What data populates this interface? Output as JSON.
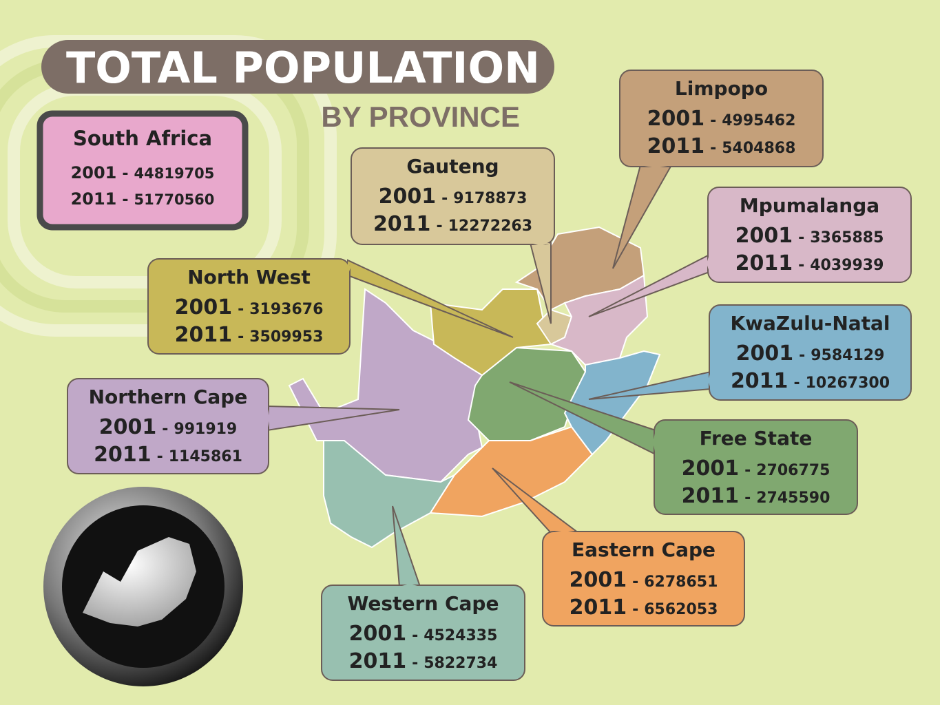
{
  "header": {
    "title": "TOTAL POPULATION",
    "subtitle": "BY PROVINCE"
  },
  "years": [
    "2001",
    "2011"
  ],
  "separator": "-",
  "national": {
    "name": "South Africa",
    "pop_2001": 44819705,
    "pop_2011": 51770560
  },
  "provinces": [
    {
      "name": "Limpopo",
      "pop_2001": 4995462,
      "pop_2011": 5404868
    },
    {
      "name": "Gauteng",
      "pop_2001": 9178873,
      "pop_2011": 12272263
    },
    {
      "name": "Mpumalanga",
      "pop_2001": 3365885,
      "pop_2011": 4039939
    },
    {
      "name": "North West",
      "pop_2001": 3193676,
      "pop_2011": 3509953
    },
    {
      "name": "KwaZulu-Natal",
      "pop_2001": 9584129,
      "pop_2011": 10267300
    },
    {
      "name": "Northern Cape",
      "pop_2001": 991919,
      "pop_2011": 1145861
    },
    {
      "name": "Free State",
      "pop_2001": 2706775,
      "pop_2011": 2745590
    },
    {
      "name": "Eastern Cape",
      "pop_2001": 6278651,
      "pop_2011": 6562053
    },
    {
      "name": "Western Cape",
      "pop_2001": 4524335,
      "pop_2011": 5822734
    }
  ]
}
